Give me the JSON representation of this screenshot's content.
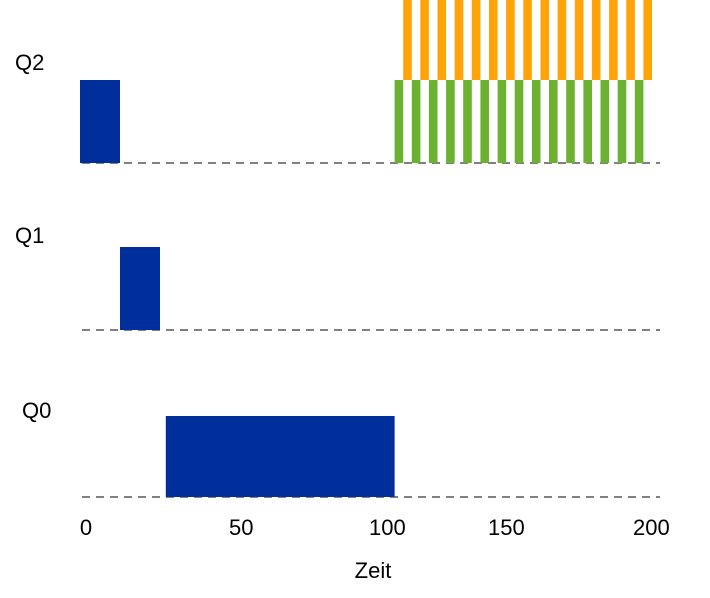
{
  "chart_data": {
    "type": "bar",
    "title": "",
    "xlabel": "Zeit",
    "ylabel": "",
    "xlim": [
      0,
      200
    ],
    "x_ticks": [
      "0",
      "50",
      "100",
      "150",
      "200"
    ],
    "legend": "none",
    "grid": false,
    "queues": [
      "Q2",
      "Q1",
      "Q0"
    ],
    "series": [
      {
        "color": "#002f9c",
        "segments": [
          {
            "queue": "Q2",
            "start": 0,
            "end": 14
          },
          {
            "queue": "Q1",
            "start": 14,
            "end": 28
          },
          {
            "queue": "Q0",
            "start": 30,
            "end": 110
          }
        ]
      },
      {
        "color": "#6cb12f",
        "segments": [
          {
            "queue": "Q2",
            "start": 110,
            "end": 113
          },
          {
            "queue": "Q2",
            "start": 116,
            "end": 119
          },
          {
            "queue": "Q2",
            "start": 122,
            "end": 125
          },
          {
            "queue": "Q2",
            "start": 128,
            "end": 131
          },
          {
            "queue": "Q2",
            "start": 134,
            "end": 137
          },
          {
            "queue": "Q2",
            "start": 140,
            "end": 143
          },
          {
            "queue": "Q2",
            "start": 146,
            "end": 149
          },
          {
            "queue": "Q2",
            "start": 152,
            "end": 155
          },
          {
            "queue": "Q2",
            "start": 158,
            "end": 161
          },
          {
            "queue": "Q2",
            "start": 164,
            "end": 167
          },
          {
            "queue": "Q2",
            "start": 170,
            "end": 173
          },
          {
            "queue": "Q2",
            "start": 176,
            "end": 179
          },
          {
            "queue": "Q2",
            "start": 182,
            "end": 185
          },
          {
            "queue": "Q2",
            "start": 188,
            "end": 191
          },
          {
            "queue": "Q2",
            "start": 194,
            "end": 197
          }
        ]
      },
      {
        "color": "#ffa308",
        "segments": [
          {
            "queue": "Q2",
            "start": 113,
            "end": 116
          },
          {
            "queue": "Q2",
            "start": 119,
            "end": 122
          },
          {
            "queue": "Q2",
            "start": 125,
            "end": 128
          },
          {
            "queue": "Q2",
            "start": 131,
            "end": 134
          },
          {
            "queue": "Q2",
            "start": 137,
            "end": 140
          },
          {
            "queue": "Q2",
            "start": 143,
            "end": 146
          },
          {
            "queue": "Q2",
            "start": 149,
            "end": 152
          },
          {
            "queue": "Q2",
            "start": 155,
            "end": 158
          },
          {
            "queue": "Q2",
            "start": 161,
            "end": 164
          },
          {
            "queue": "Q2",
            "start": 167,
            "end": 170
          },
          {
            "queue": "Q2",
            "start": 173,
            "end": 176
          },
          {
            "queue": "Q2",
            "start": 179,
            "end": 182
          },
          {
            "queue": "Q2",
            "start": 185,
            "end": 188
          },
          {
            "queue": "Q2",
            "start": 191,
            "end": 194
          },
          {
            "queue": "Q2",
            "start": 197,
            "end": 200
          }
        ]
      }
    ]
  }
}
